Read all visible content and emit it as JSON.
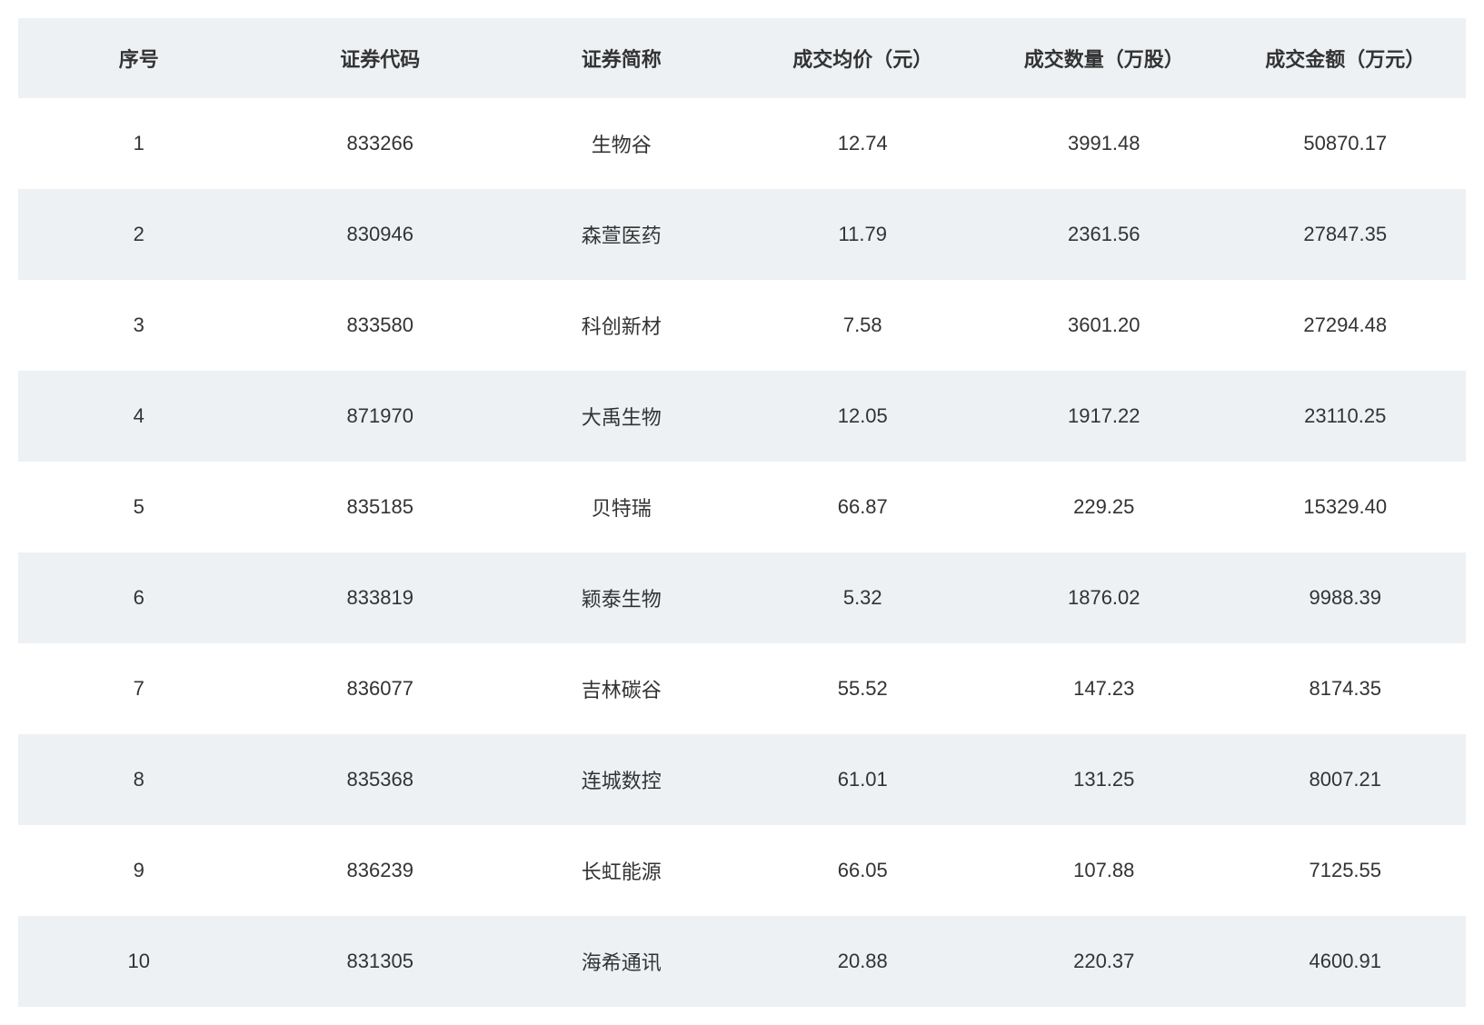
{
  "table": {
    "type": "table",
    "background_color": "#ffffff",
    "header_background": "#edf1f4",
    "row_even_background": "#edf1f4",
    "row_odd_background": "#ffffff",
    "text_color": "#333333",
    "header_fontsize": 22,
    "cell_fontsize": 22,
    "header_fontweight": 700,
    "columns": [
      {
        "key": "index",
        "label": "序号"
      },
      {
        "key": "code",
        "label": "证券代码"
      },
      {
        "key": "name",
        "label": "证券简称"
      },
      {
        "key": "avg_price",
        "label": "成交均价（元）"
      },
      {
        "key": "volume",
        "label": "成交数量（万股）"
      },
      {
        "key": "amount",
        "label": "成交金额（万元）"
      }
    ],
    "rows": [
      {
        "index": "1",
        "code": "833266",
        "name": "生物谷",
        "avg_price": "12.74",
        "volume": "3991.48",
        "amount": "50870.17"
      },
      {
        "index": "2",
        "code": "830946",
        "name": "森萱医药",
        "avg_price": "11.79",
        "volume": "2361.56",
        "amount": "27847.35"
      },
      {
        "index": "3",
        "code": "833580",
        "name": "科创新材",
        "avg_price": "7.58",
        "volume": "3601.20",
        "amount": "27294.48"
      },
      {
        "index": "4",
        "code": "871970",
        "name": "大禹生物",
        "avg_price": "12.05",
        "volume": "1917.22",
        "amount": "23110.25"
      },
      {
        "index": "5",
        "code": "835185",
        "name": "贝特瑞",
        "avg_price": "66.87",
        "volume": "229.25",
        "amount": "15329.40"
      },
      {
        "index": "6",
        "code": "833819",
        "name": "颖泰生物",
        "avg_price": "5.32",
        "volume": "1876.02",
        "amount": "9988.39"
      },
      {
        "index": "7",
        "code": "836077",
        "name": "吉林碳谷",
        "avg_price": "55.52",
        "volume": "147.23",
        "amount": "8174.35"
      },
      {
        "index": "8",
        "code": "835368",
        "name": "连城数控",
        "avg_price": "61.01",
        "volume": "131.25",
        "amount": "8007.21"
      },
      {
        "index": "9",
        "code": "836239",
        "name": "长虹能源",
        "avg_price": "66.05",
        "volume": "107.88",
        "amount": "7125.55"
      },
      {
        "index": "10",
        "code": "831305",
        "name": "海希通讯",
        "avg_price": "20.88",
        "volume": "220.37",
        "amount": "4600.91"
      }
    ]
  }
}
